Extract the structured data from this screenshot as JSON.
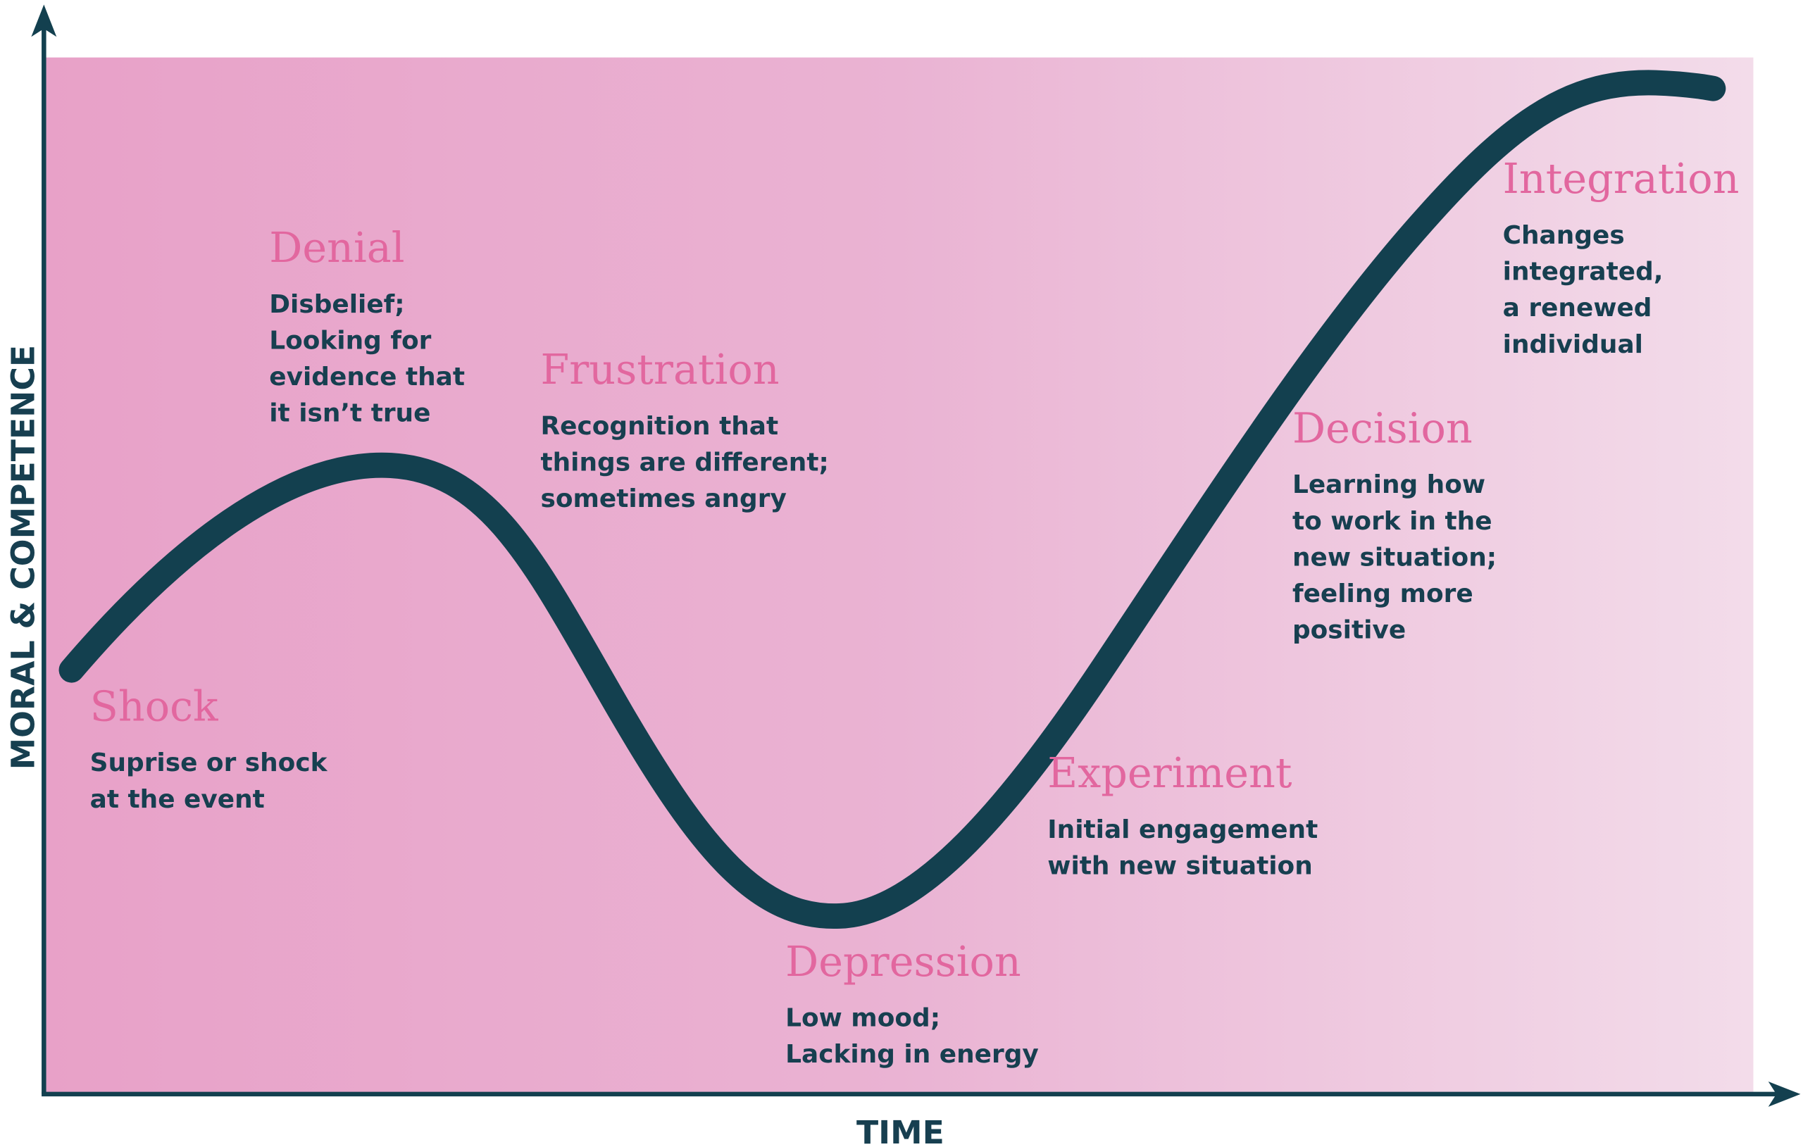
{
  "axes": {
    "y_label": "MORAL & COMPETENCE",
    "x_label": "TIME"
  },
  "stages": [
    {
      "title": "Shock",
      "lines": [
        "Suprise or shock",
        "at the event"
      ]
    },
    {
      "title": "Denial",
      "lines": [
        "Disbelief;",
        "Looking for",
        "evidence that",
        "it isn’t true"
      ]
    },
    {
      "title": "Frustration",
      "lines": [
        "Recognition that",
        "things are different;",
        "sometimes angry"
      ]
    },
    {
      "title": "Depression",
      "lines": [
        "Low mood;",
        "Lacking in energy"
      ]
    },
    {
      "title": "Experiment",
      "lines": [
        "Initial engagement",
        "with new situation"
      ]
    },
    {
      "title": "Decision",
      "lines": [
        "Learning how",
        "to work in the",
        "new situation;",
        "feeling more",
        "positive"
      ]
    },
    {
      "title": "Integration",
      "lines": [
        "Changes",
        "integrated,",
        "a renewed",
        "individual"
      ]
    }
  ]
}
